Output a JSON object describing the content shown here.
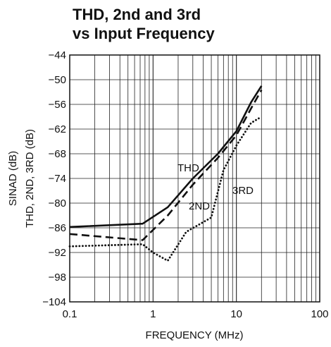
{
  "chart_data": {
    "type": "line",
    "title_lines": [
      "THD, 2nd and 3rd",
      "vs Input Frequency"
    ],
    "xlabel": "FREQUENCY (MHz)",
    "ylabel_lines": [
      "SINAD (dB)",
      "THD, 2ND, 3RD (dB)"
    ],
    "xscale": "log",
    "xlim": [
      0.1,
      100
    ],
    "ylim": [
      -104,
      -44
    ],
    "x_ticks": [
      0.1,
      1,
      10,
      100
    ],
    "x_tick_labels": [
      "0.1",
      "1",
      "10",
      "100"
    ],
    "y_ticks": [
      -104,
      -98,
      -92,
      -86,
      -80,
      -74,
      -68,
      -62,
      -56,
      -50,
      -44
    ],
    "y_tick_labels": [
      "−104",
      "−98",
      "−92",
      "−86",
      "−80",
      "−74",
      "−68",
      "−62",
      "−56",
      "−50",
      "−44"
    ],
    "grid": true,
    "series": [
      {
        "name": "THD",
        "style": "solid",
        "x": [
          0.1,
          0.75,
          1.5,
          3,
          6,
          10,
          15,
          20
        ],
        "y": [
          -85.8,
          -85.0,
          -81.0,
          -74.0,
          -68.0,
          -62.5,
          -55.5,
          -51.5
        ]
      },
      {
        "name": "2ND",
        "style": "dashed",
        "x": [
          0.1,
          0.75,
          1.5,
          3,
          6,
          10,
          15,
          20
        ],
        "y": [
          -87.5,
          -89.0,
          -83.0,
          -75.5,
          -69.0,
          -63.5,
          -57.0,
          -52.5
        ]
      },
      {
        "name": "3RD",
        "style": "dotted",
        "x": [
          0.1,
          0.75,
          1.0,
          1.5,
          2.5,
          5,
          7,
          10,
          15,
          20
        ],
        "y": [
          -90.5,
          -90.0,
          -92.0,
          -94.0,
          -87.0,
          -83.5,
          -72.0,
          -66.0,
          -60.5,
          -59.0
        ]
      }
    ],
    "annotations": [
      "THD",
      "2ND",
      "3RD"
    ]
  }
}
